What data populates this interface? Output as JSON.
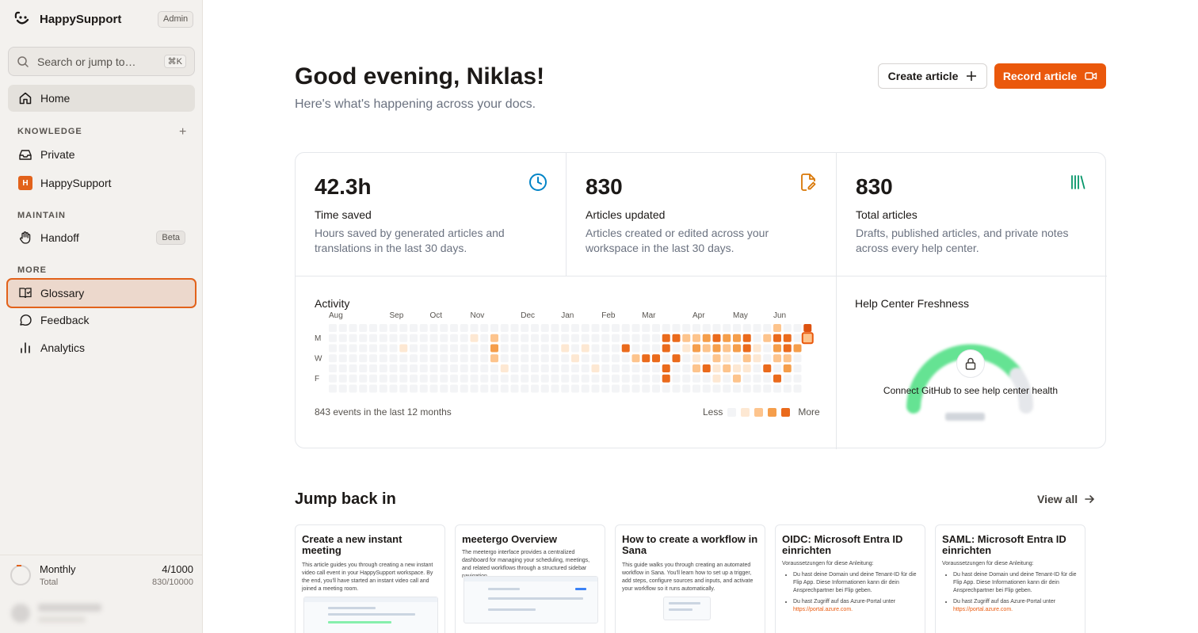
{
  "brand": {
    "name": "HappySupport",
    "role_badge": "Admin"
  },
  "search": {
    "placeholder": "Search or jump to…",
    "shortcut": "⌘K"
  },
  "nav": {
    "home": "Home"
  },
  "sections": {
    "knowledge": "KNOWLEDGE",
    "maintain": "MAINTAIN",
    "more": "MORE"
  },
  "knowledge_items": [
    {
      "label": "Private"
    },
    {
      "label": "HappySupport",
      "badge": "H"
    }
  ],
  "maintain_items": [
    {
      "label": "Handoff",
      "badge": "Beta"
    }
  ],
  "more_items": [
    {
      "label": "Glossary"
    },
    {
      "label": "Feedback"
    },
    {
      "label": "Analytics"
    }
  ],
  "usage": {
    "label": "Monthly",
    "value": "4/1000",
    "sub_label": "Total",
    "sub_value": "830/10000"
  },
  "header": {
    "greeting": "Good evening, Niklas!",
    "subtitle": "Here's what's happening across your docs.",
    "create_label": "Create article",
    "record_label": "Record article"
  },
  "stats": [
    {
      "value": "42.3h",
      "label": "Time saved",
      "desc": "Hours saved by generated articles and translations in the last 30 days.",
      "icon": "clock-icon",
      "color": "#0284c7"
    },
    {
      "value": "830",
      "label": "Articles updated",
      "desc": "Articles created or edited across your workspace in the last 30 days.",
      "icon": "file-edit-icon",
      "color": "#d97706"
    },
    {
      "value": "830",
      "label": "Total articles",
      "desc": "Drafts, published articles, and private notes across every help center.",
      "icon": "library-icon",
      "color": "#059669"
    }
  ],
  "activity": {
    "title": "Activity",
    "months": [
      "Aug",
      "Sep",
      "Oct",
      "Nov",
      "Dec",
      "Jan",
      "Feb",
      "Mar",
      "Apr",
      "May",
      "Jun"
    ],
    "days": [
      "M",
      "W",
      "F"
    ],
    "footer": "843 events in the last 12 months",
    "legend_less": "Less",
    "legend_more": "More",
    "palette": [
      "#f3f4f6",
      "#fde8d3",
      "#fdc48d",
      "#f59e4b",
      "#ea6a1c",
      "#dd5210"
    ]
  },
  "freshness": {
    "title": "Help Center Freshness",
    "message": "Connect GitHub to see help center health"
  },
  "jump": {
    "title": "Jump back in",
    "view_all": "View all"
  },
  "cards": [
    {
      "title": "Create a new instant meeting",
      "desc": "This article guides you through creating a new instant video call event in your HappySupport workspace. By the end, you'll have started an instant video call and joined a meeting room."
    },
    {
      "title": "meetergo Overview",
      "desc": "The meetergo interface provides a centralized dashboard for managing your scheduling, meetings, and related workflows through a structured sidebar navigation."
    },
    {
      "title": "How to create a workflow in Sana",
      "desc": "This guide walks you through creating an automated workflow in Sana. You'll learn how to set up a trigger, add steps, configure sources and inputs, and activate your workflow so it runs automatically."
    },
    {
      "title": "OIDC: Microsoft Entra ID einrichten",
      "pre": "Voraussetzungen für diese Anleitung:",
      "li1": "Du hast deine Domain und deine Tenant-ID für die Flip App. Diese Informationen kann dir dein Ansprechpartner bei Flip geben.",
      "li2": "Du hast Zugriff auf das Azure-Portal unter",
      "link": "https://portal.azure.com."
    },
    {
      "title": "SAML: Microsoft Entra ID einrichten",
      "pre": "Voraussetzungen für diese Anleitung:",
      "li1": "Du hast deine Domain und deine Tenant-ID für die Flip App. Diese Informationen kann dir dein Ansprechpartner bei Flip geben.",
      "li2": "Du hast Zugriff auf das Azure-Portal unter",
      "link": "https://portal.azure.com."
    }
  ]
}
